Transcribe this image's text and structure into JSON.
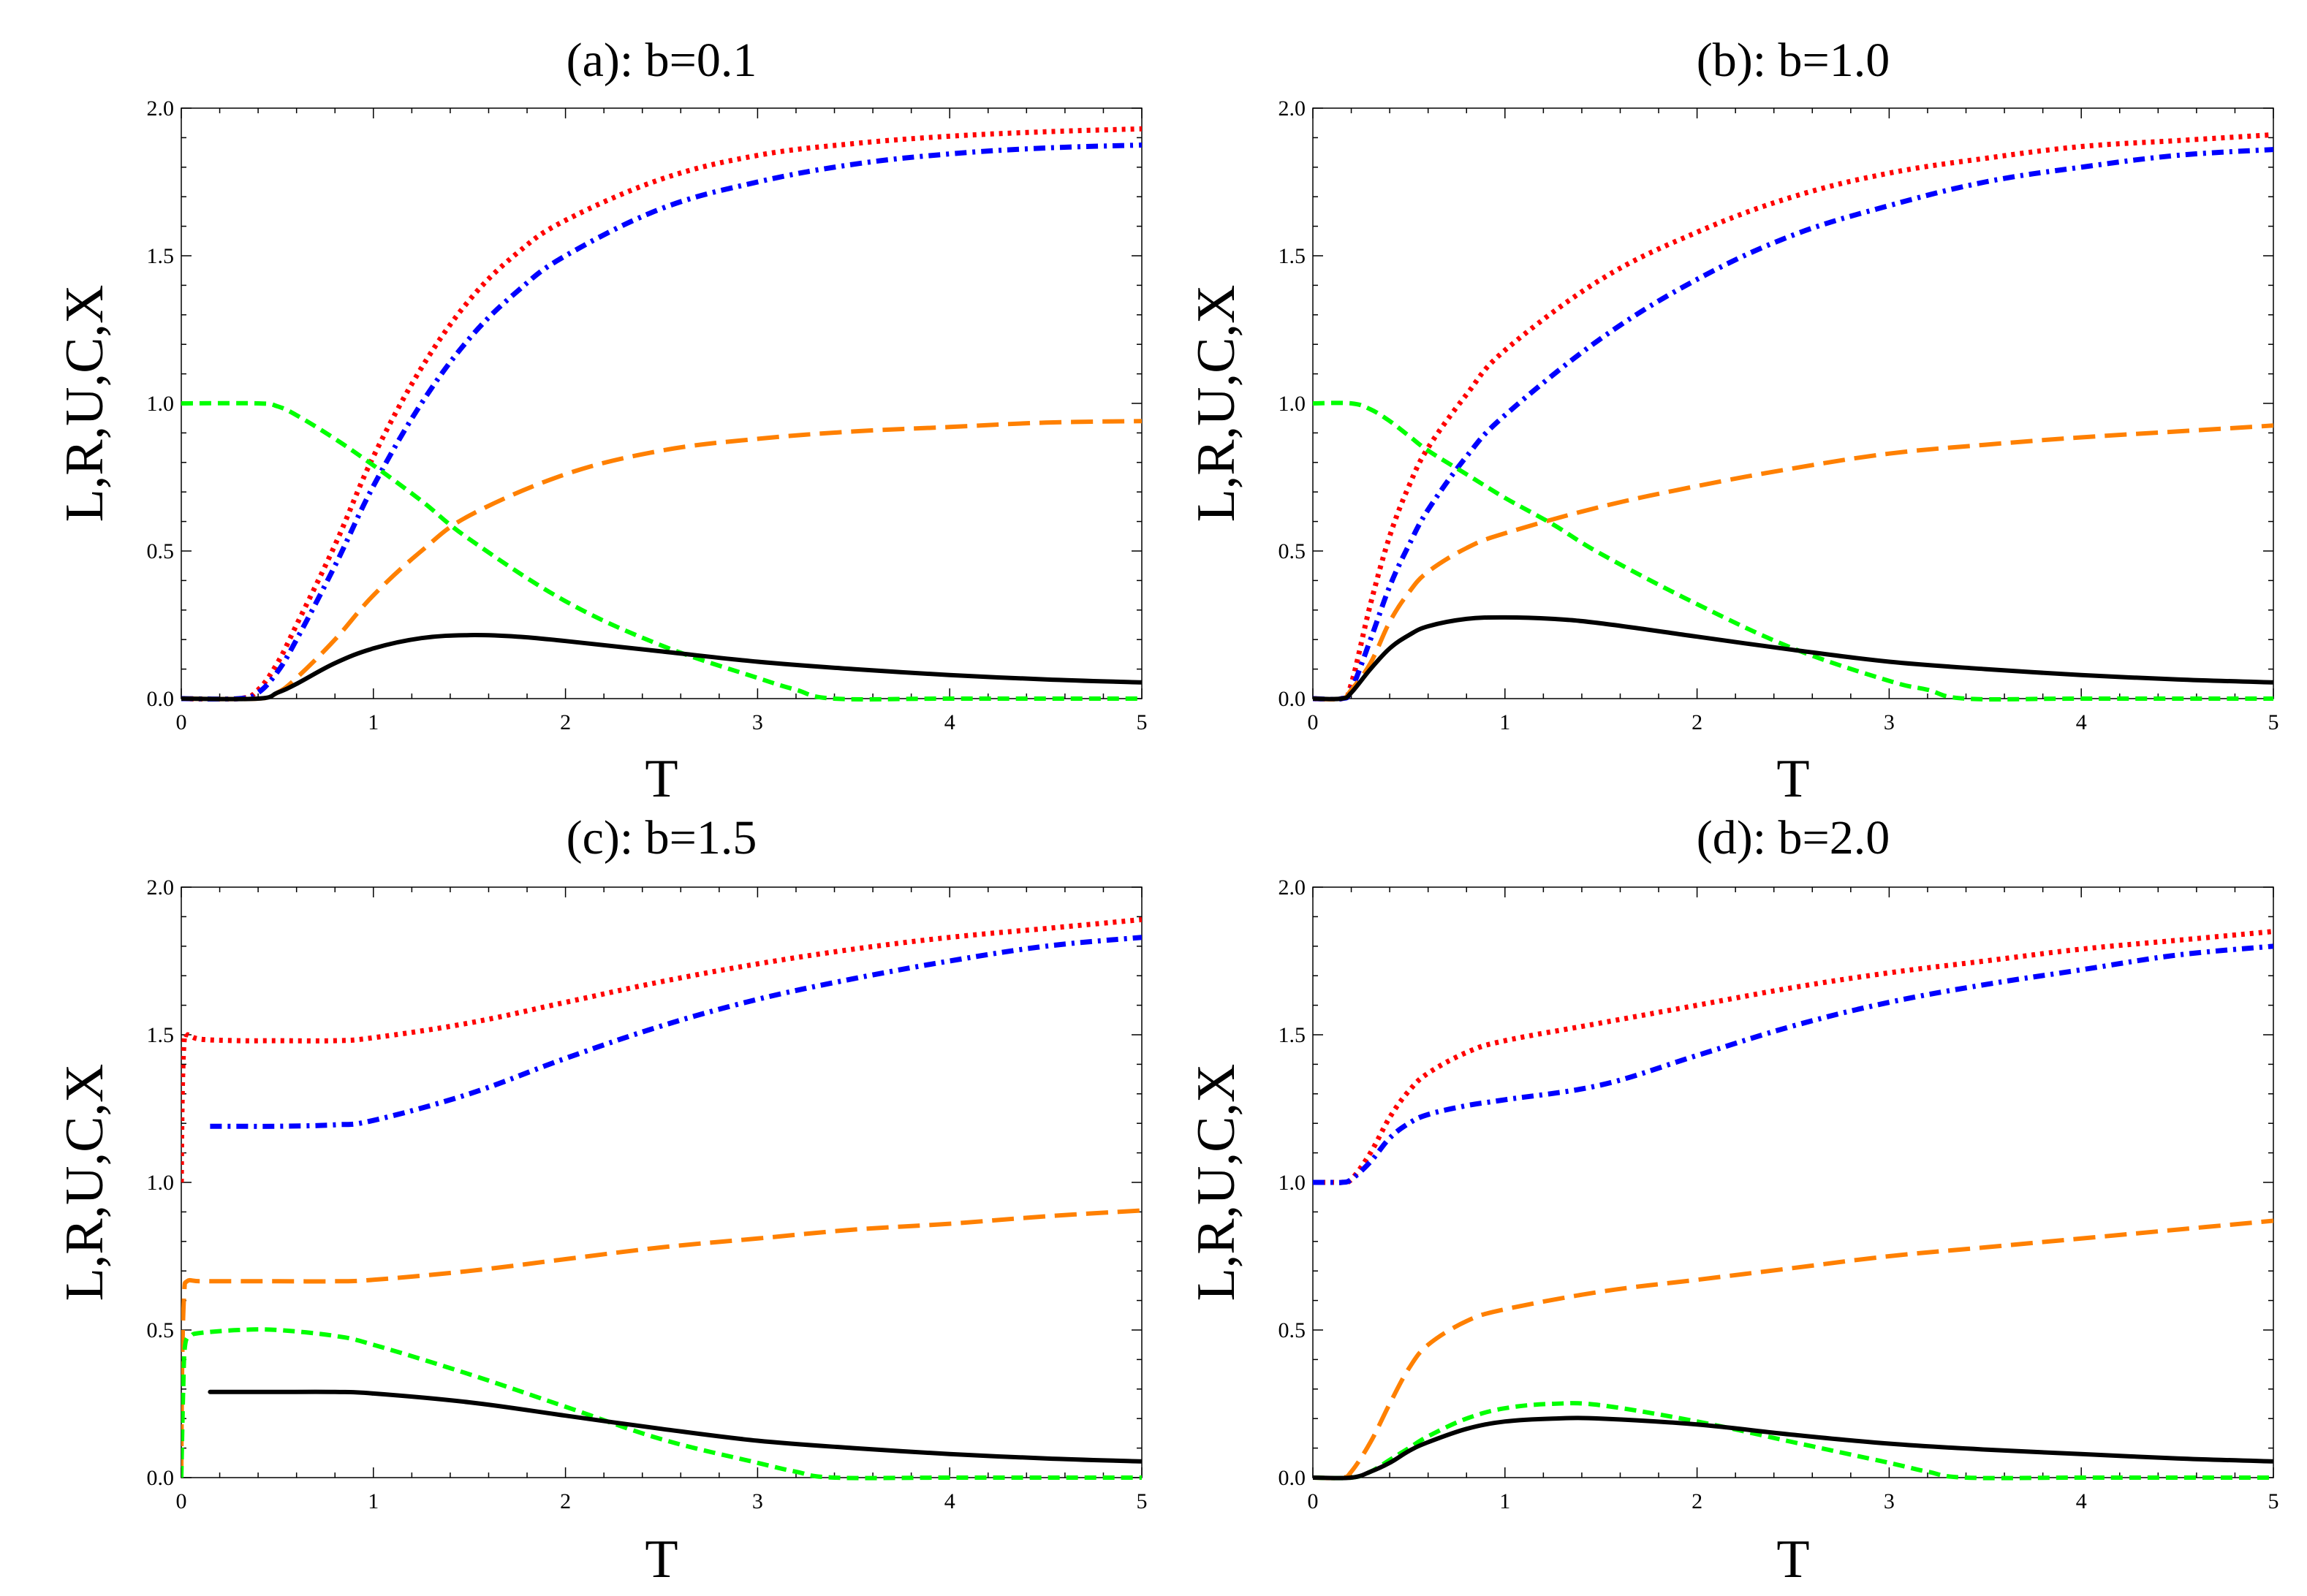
{
  "chart_data": [
    {
      "type": "line",
      "title": "(a): b=0.1",
      "xlabel": "T",
      "ylabel": "L,R,U,C,X",
      "xlim": [
        0,
        5
      ],
      "ylim": [
        0,
        2
      ],
      "xticks": [
        "0",
        "1",
        "2",
        "3",
        "4",
        "5"
      ],
      "yticks": [
        "0.0",
        "0.5",
        "1.0",
        "1.5",
        "2.0"
      ],
      "series": [
        {
          "name": "red-dotted",
          "color": "#ff0000",
          "style": "dotted",
          "x": [
            0,
            0.3,
            0.4,
            0.5,
            0.6,
            0.8,
            1.0,
            1.25,
            1.5,
            1.75,
            2.0,
            2.5,
            3.0,
            3.5,
            4.0,
            4.5,
            5.0
          ],
          "y": [
            0,
            0,
            0.03,
            0.12,
            0.25,
            0.52,
            0.82,
            1.12,
            1.35,
            1.51,
            1.62,
            1.76,
            1.84,
            1.88,
            1.905,
            1.92,
            1.93
          ]
        },
        {
          "name": "blue-dashdot",
          "color": "#0000ff",
          "style": "dashdot",
          "x": [
            0,
            0.3,
            0.4,
            0.5,
            0.6,
            0.8,
            1.0,
            1.25,
            1.5,
            1.75,
            2.0,
            2.5,
            3.0,
            3.5,
            4.0,
            4.5,
            5.0
          ],
          "y": [
            0,
            0,
            0.02,
            0.09,
            0.2,
            0.45,
            0.72,
            1.0,
            1.22,
            1.38,
            1.5,
            1.66,
            1.75,
            1.81,
            1.845,
            1.865,
            1.875
          ]
        },
        {
          "name": "orange-longdash",
          "color": "#ff8000",
          "style": "longdash",
          "x": [
            0,
            0.4,
            0.5,
            0.6,
            0.8,
            1.0,
            1.25,
            1.5,
            2.0,
            2.5,
            3.0,
            3.5,
            4.0,
            4.5,
            5.0
          ],
          "y": [
            0,
            0,
            0.02,
            0.07,
            0.2,
            0.35,
            0.5,
            0.62,
            0.76,
            0.84,
            0.88,
            0.905,
            0.92,
            0.935,
            0.94
          ]
        },
        {
          "name": "green-dashed",
          "color": "#00ff00",
          "style": "dashed",
          "x": [
            0,
            0.4,
            0.5,
            0.6,
            0.8,
            1.0,
            1.25,
            1.5,
            2.0,
            2.5,
            3.0,
            3.2,
            3.4,
            4.0,
            5.0
          ],
          "y": [
            1.0,
            1.0,
            0.99,
            0.96,
            0.88,
            0.79,
            0.67,
            0.54,
            0.33,
            0.18,
            0.07,
            0.03,
            0.0,
            0.0,
            0.0
          ]
        },
        {
          "name": "black-solid",
          "color": "#000000",
          "style": "solid",
          "x": [
            0,
            0.4,
            0.5,
            0.6,
            0.8,
            1.0,
            1.25,
            1.5,
            1.75,
            2.0,
            2.5,
            3.0,
            3.5,
            4.0,
            4.5,
            5.0
          ],
          "y": [
            0,
            0,
            0.02,
            0.05,
            0.12,
            0.17,
            0.205,
            0.215,
            0.21,
            0.195,
            0.16,
            0.125,
            0.1,
            0.08,
            0.065,
            0.055
          ]
        }
      ]
    },
    {
      "type": "line",
      "title": "(b): b=1.0",
      "xlabel": "T",
      "ylabel": "L,R,U,C,X",
      "xlim": [
        0,
        5
      ],
      "ylim": [
        0,
        2
      ],
      "xticks": [
        "0",
        "1",
        "2",
        "3",
        "4",
        "5"
      ],
      "yticks": [
        "0.0",
        "0.5",
        "1.0",
        "1.5",
        "2.0"
      ],
      "series": [
        {
          "name": "red-dotted",
          "color": "#ff0000",
          "style": "dotted",
          "x": [
            0,
            0.15,
            0.2,
            0.3,
            0.4,
            0.5,
            0.6,
            0.8,
            1.0,
            1.5,
            2.0,
            2.5,
            3.0,
            3.5,
            4.0,
            4.5,
            5.0
          ],
          "y": [
            0,
            0,
            0.05,
            0.32,
            0.55,
            0.72,
            0.85,
            1.03,
            1.18,
            1.42,
            1.58,
            1.7,
            1.78,
            1.83,
            1.87,
            1.89,
            1.91
          ]
        },
        {
          "name": "blue-dashdot",
          "color": "#0000ff",
          "style": "dashdot",
          "x": [
            0,
            0.15,
            0.2,
            0.3,
            0.4,
            0.5,
            0.6,
            0.8,
            1.0,
            1.5,
            2.0,
            2.5,
            3.0,
            3.5,
            4.0,
            4.5,
            5.0
          ],
          "y": [
            0,
            0,
            0.03,
            0.2,
            0.38,
            0.52,
            0.64,
            0.82,
            0.96,
            1.22,
            1.42,
            1.57,
            1.67,
            1.75,
            1.8,
            1.84,
            1.86
          ]
        },
        {
          "name": "orange-longdash",
          "color": "#ff8000",
          "style": "longdash",
          "x": [
            0,
            0.15,
            0.2,
            0.3,
            0.4,
            0.5,
            0.6,
            0.8,
            1.0,
            1.5,
            2.0,
            2.5,
            3.0,
            3.5,
            4.0,
            4.5,
            5.0
          ],
          "y": [
            0,
            0,
            0.03,
            0.12,
            0.26,
            0.36,
            0.43,
            0.51,
            0.56,
            0.65,
            0.72,
            0.78,
            0.83,
            0.86,
            0.885,
            0.905,
            0.925
          ]
        },
        {
          "name": "green-dashed",
          "color": "#00ff00",
          "style": "dashed",
          "x": [
            0,
            0.2,
            0.3,
            0.4,
            0.5,
            0.6,
            0.8,
            1.0,
            1.25,
            1.5,
            2.0,
            2.5,
            3.0,
            3.2,
            3.4,
            4.0,
            5.0
          ],
          "y": [
            1.0,
            1.0,
            0.98,
            0.94,
            0.89,
            0.84,
            0.76,
            0.68,
            0.59,
            0.49,
            0.32,
            0.17,
            0.06,
            0.03,
            0.0,
            0.0,
            0.0
          ]
        },
        {
          "name": "black-solid",
          "color": "#000000",
          "style": "solid",
          "x": [
            0,
            0.15,
            0.2,
            0.3,
            0.4,
            0.5,
            0.6,
            0.8,
            1.0,
            1.25,
            1.5,
            2.0,
            2.5,
            3.0,
            3.5,
            4.0,
            4.5,
            5.0
          ],
          "y": [
            0,
            0,
            0.02,
            0.1,
            0.17,
            0.215,
            0.245,
            0.27,
            0.275,
            0.27,
            0.255,
            0.21,
            0.165,
            0.125,
            0.1,
            0.08,
            0.065,
            0.055
          ]
        }
      ]
    },
    {
      "type": "line",
      "title": "(c): b=1.5",
      "xlabel": "T",
      "ylabel": "L,R,U,C,X",
      "xlim": [
        0,
        5
      ],
      "ylim": [
        0,
        2
      ],
      "xticks": [
        "0",
        "1",
        "2",
        "3",
        "4",
        "5"
      ],
      "yticks": [
        "0.0",
        "0.5",
        "1.0",
        "1.5",
        "2.0"
      ],
      "series": [
        {
          "name": "red-dotted",
          "color": "#ff0000",
          "style": "dotted",
          "x": [
            0.0,
            0.005,
            0.015,
            0.03,
            0.1,
            0.3,
            0.5,
            0.8,
            1.0,
            1.5,
            2.0,
            2.5,
            3.0,
            3.5,
            4.0,
            4.5,
            5.0
          ],
          "y": [
            1.0,
            1.3,
            1.48,
            1.5,
            1.485,
            1.48,
            1.48,
            1.48,
            1.49,
            1.54,
            1.61,
            1.68,
            1.74,
            1.79,
            1.83,
            1.86,
            1.89
          ]
        },
        {
          "name": "blue-dashdot",
          "color": "#0000ff",
          "style": "dashdot",
          "x": [
            0.15,
            0.3,
            0.5,
            0.8,
            1.0,
            1.5,
            2.0,
            2.5,
            3.0,
            3.5,
            4.0,
            4.5,
            5.0
          ],
          "y": [
            1.19,
            1.19,
            1.19,
            1.195,
            1.21,
            1.3,
            1.42,
            1.53,
            1.62,
            1.69,
            1.75,
            1.8,
            1.83
          ]
        },
        {
          "name": "orange-longdash",
          "color": "#ff8000",
          "style": "longdash",
          "x": [
            0.0,
            0.005,
            0.015,
            0.03,
            0.1,
            0.3,
            0.5,
            0.8,
            1.0,
            1.5,
            2.0,
            2.5,
            3.0,
            3.5,
            4.0,
            4.5,
            5.0
          ],
          "y": [
            0.0,
            0.4,
            0.62,
            0.665,
            0.665,
            0.665,
            0.665,
            0.665,
            0.67,
            0.7,
            0.74,
            0.78,
            0.81,
            0.84,
            0.86,
            0.885,
            0.905
          ]
        },
        {
          "name": "green-dashed",
          "color": "#00ff00",
          "style": "dashed",
          "x": [
            0.0,
            0.01,
            0.02,
            0.05,
            0.1,
            0.3,
            0.5,
            0.8,
            1.0,
            1.5,
            2.0,
            2.5,
            3.0,
            3.2,
            3.4,
            4.0,
            5.0
          ],
          "y": [
            0.0,
            0.3,
            0.45,
            0.48,
            0.49,
            0.5,
            0.5,
            0.48,
            0.45,
            0.35,
            0.24,
            0.13,
            0.05,
            0.02,
            0.0,
            0.0,
            0.0
          ]
        },
        {
          "name": "black-solid",
          "color": "#000000",
          "style": "solid",
          "x": [
            0.15,
            0.3,
            0.5,
            0.8,
            1.0,
            1.5,
            2.0,
            2.5,
            3.0,
            3.5,
            4.0,
            4.5,
            5.0
          ],
          "y": [
            0.29,
            0.29,
            0.29,
            0.29,
            0.285,
            0.255,
            0.21,
            0.165,
            0.125,
            0.1,
            0.08,
            0.065,
            0.055
          ]
        }
      ]
    },
    {
      "type": "line",
      "title": "(d): b=2.0",
      "xlabel": "T",
      "ylabel": "L,R,U,C,X",
      "xlim": [
        0,
        5
      ],
      "ylim": [
        0,
        2
      ],
      "xticks": [
        "0",
        "1",
        "2",
        "3",
        "4",
        "5"
      ],
      "yticks": [
        "0.0",
        "0.5",
        "1.0",
        "1.5",
        "2.0"
      ],
      "series": [
        {
          "name": "red-dotted",
          "color": "#ff0000",
          "style": "dotted",
          "x": [
            0,
            0.1,
            0.15,
            0.2,
            0.3,
            0.4,
            0.5,
            0.6,
            0.8,
            1.0,
            1.5,
            2.0,
            2.5,
            3.0,
            3.5,
            4.0,
            4.5,
            5.0
          ],
          "y": [
            1.0,
            1.0,
            1.0,
            1.01,
            1.1,
            1.22,
            1.31,
            1.37,
            1.44,
            1.48,
            1.54,
            1.6,
            1.66,
            1.71,
            1.75,
            1.79,
            1.82,
            1.85
          ]
        },
        {
          "name": "blue-dashdot",
          "color": "#0000ff",
          "style": "dashdot",
          "x": [
            0,
            0.1,
            0.15,
            0.2,
            0.3,
            0.4,
            0.5,
            0.6,
            0.8,
            1.0,
            1.5,
            2.0,
            2.5,
            3.0,
            3.5,
            4.0,
            4.5,
            5.0
          ],
          "y": [
            1.0,
            1.0,
            1.0,
            1.01,
            1.07,
            1.15,
            1.2,
            1.23,
            1.26,
            1.28,
            1.33,
            1.43,
            1.53,
            1.61,
            1.67,
            1.72,
            1.77,
            1.8
          ]
        },
        {
          "name": "orange-longdash",
          "color": "#ff8000",
          "style": "longdash",
          "x": [
            0,
            0.15,
            0.2,
            0.3,
            0.4,
            0.5,
            0.6,
            0.8,
            1.0,
            1.5,
            2.0,
            2.5,
            3.0,
            3.5,
            4.0,
            4.5,
            5.0
          ],
          "y": [
            0,
            0,
            0.02,
            0.12,
            0.25,
            0.37,
            0.45,
            0.53,
            0.57,
            0.63,
            0.67,
            0.71,
            0.75,
            0.78,
            0.81,
            0.84,
            0.87
          ]
        },
        {
          "name": "green-dashed",
          "color": "#00ff00",
          "style": "dashed",
          "x": [
            0,
            0.2,
            0.3,
            0.4,
            0.5,
            0.6,
            0.8,
            1.0,
            1.25,
            1.5,
            2.0,
            2.5,
            3.0,
            3.2,
            3.4,
            4.0,
            5.0
          ],
          "y": [
            0,
            0,
            0.02,
            0.06,
            0.1,
            0.14,
            0.2,
            0.235,
            0.25,
            0.245,
            0.19,
            0.12,
            0.05,
            0.02,
            0.0,
            0.0,
            0.0
          ]
        },
        {
          "name": "black-solid",
          "color": "#000000",
          "style": "solid",
          "x": [
            0,
            0.2,
            0.3,
            0.4,
            0.5,
            0.6,
            0.8,
            1.0,
            1.25,
            1.5,
            2.0,
            2.5,
            3.0,
            3.5,
            4.0,
            4.5,
            5.0
          ],
          "y": [
            0,
            0,
            0.02,
            0.05,
            0.09,
            0.12,
            0.165,
            0.19,
            0.2,
            0.2,
            0.18,
            0.145,
            0.115,
            0.095,
            0.08,
            0.065,
            0.055
          ]
        }
      ]
    }
  ]
}
